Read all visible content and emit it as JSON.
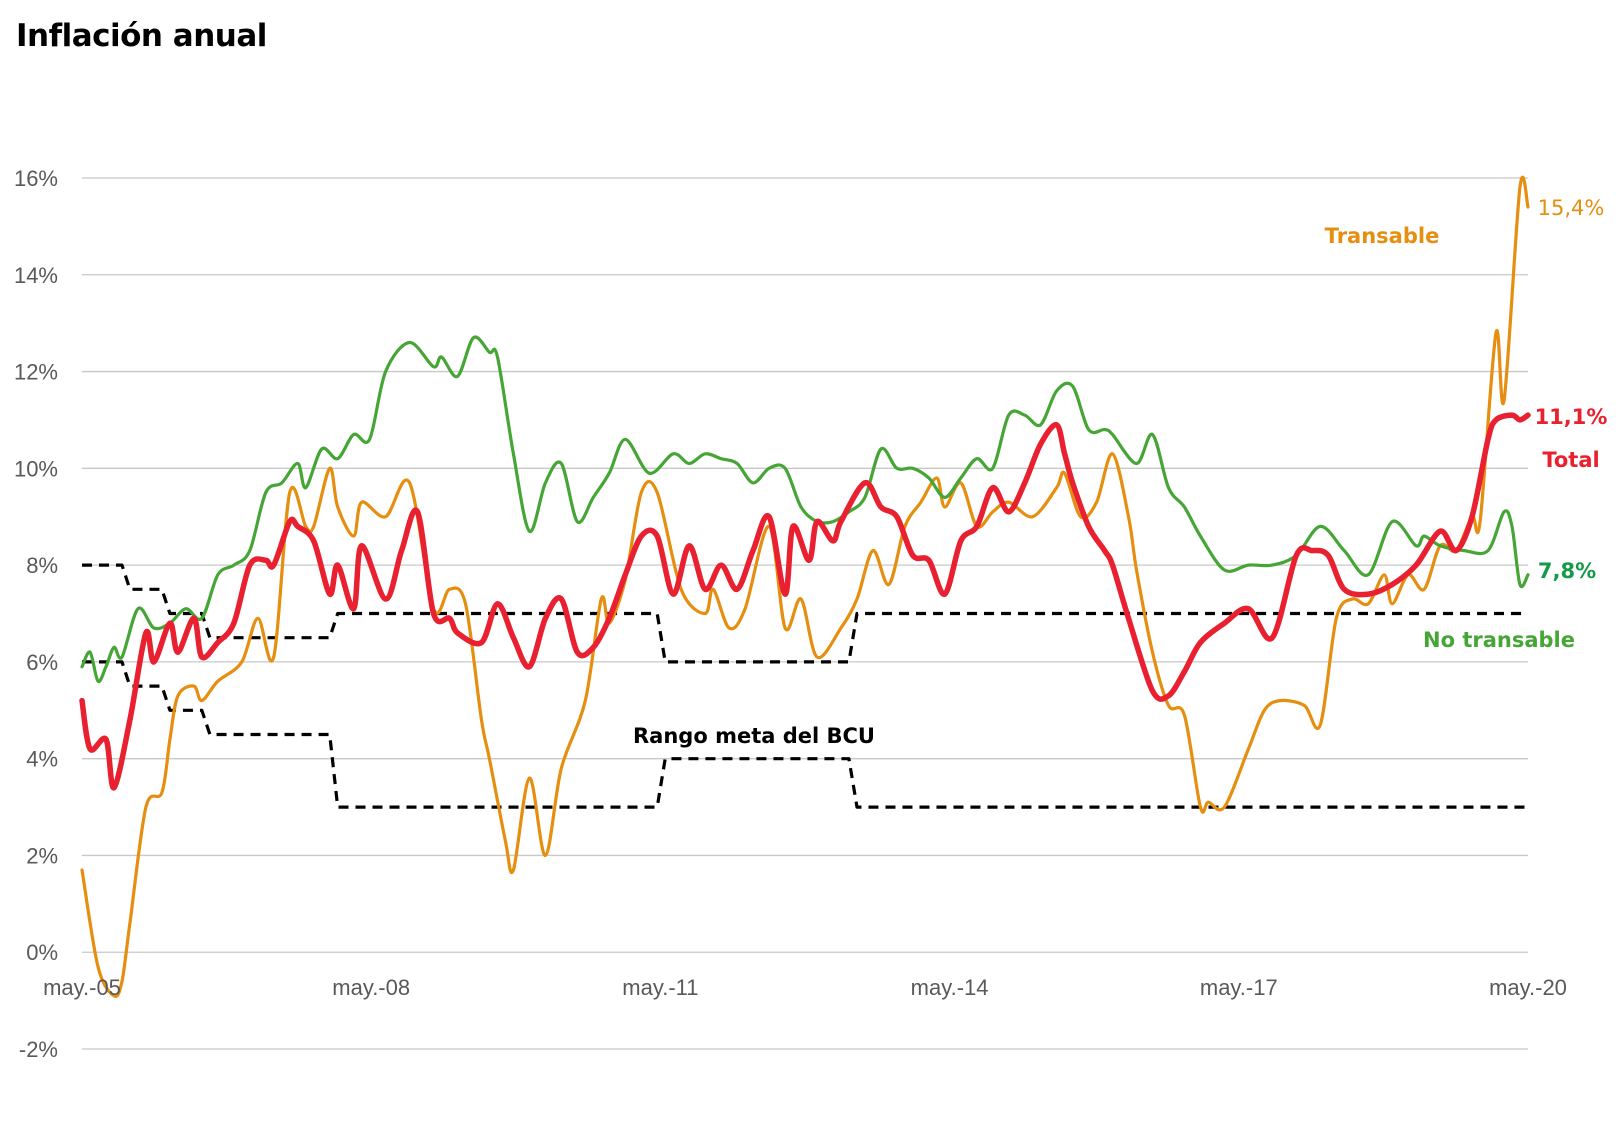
{
  "title": "Inflación anual",
  "chart_data": {
    "type": "line",
    "title": "Inflación anual",
    "xlabel": "",
    "ylabel": "",
    "x_tick_labels": [
      "may.-05",
      "may.-08",
      "may.-11",
      "may.-14",
      "may.-17",
      "may.-20"
    ],
    "y_tick_labels": [
      "-2%",
      "0%",
      "2%",
      "4%",
      "6%",
      "8%",
      "10%",
      "12%",
      "14%",
      "16%"
    ],
    "ylim": [
      -2,
      16
    ],
    "xlim": [
      2005.333,
      2020.417
    ],
    "grid": "horizontal",
    "colors": {
      "Total": "#e8202f",
      "Transable": "#e58e0f",
      "No transable": "#45a535",
      "band": "#000000",
      "green_label": "#159a4a"
    },
    "series": [
      {
        "name": "Transable",
        "x": [
          2005.333,
          2005.5,
          2005.667,
          2005.75,
          2005.833,
          2006.0,
          2006.167,
          2006.25,
          2006.333,
          2006.5,
          2006.583,
          2006.75,
          2007.0,
          2007.167,
          2007.333,
          2007.5,
          2007.667,
          2007.75,
          2007.917,
          2008.0,
          2008.167,
          2008.25,
          2008.5,
          2008.75,
          2009.0,
          2009.167,
          2009.333,
          2009.5,
          2009.583,
          2009.75,
          2009.833,
          2010.0,
          2010.167,
          2010.333,
          2010.583,
          2010.75,
          2010.833,
          2011.0,
          2011.167,
          2011.333,
          2011.583,
          2011.833,
          2011.917,
          2012.083,
          2012.25,
          2012.5,
          2012.667,
          2012.833,
          2013.0,
          2013.25,
          2013.417,
          2013.583,
          2013.75,
          2013.917,
          2014.083,
          2014.25,
          2014.333,
          2014.5,
          2014.667,
          2014.833,
          2015.0,
          2015.25,
          2015.5,
          2015.583,
          2015.75,
          2015.917,
          2016.083,
          2016.25,
          2016.333,
          2016.5,
          2016.667,
          2016.833,
          2017.0,
          2017.083,
          2017.25,
          2017.5,
          2017.667,
          2017.833,
          2018.083,
          2018.25,
          2018.417,
          2018.583,
          2018.75,
          2018.917,
          2019.0,
          2019.167,
          2019.333,
          2019.5,
          2019.667,
          2019.833,
          2019.917,
          2020.083,
          2020.167,
          2020.333,
          2020.417
        ],
        "values": [
          1.7,
          -0.3,
          -0.9,
          -0.6,
          0.6,
          3.0,
          3.3,
          4.4,
          5.3,
          5.5,
          5.2,
          5.6,
          6.0,
          6.9,
          6.1,
          9.5,
          8.8,
          8.8,
          10.0,
          9.2,
          8.6,
          9.3,
          9.0,
          9.7,
          7.1,
          7.5,
          7.2,
          4.8,
          4.0,
          2.3,
          1.7,
          3.6,
          2.0,
          3.8,
          5.2,
          7.3,
          6.8,
          7.7,
          9.5,
          9.5,
          7.5,
          7.0,
          7.5,
          6.7,
          7.1,
          8.8,
          6.7,
          7.3,
          6.1,
          6.7,
          7.3,
          8.3,
          7.6,
          8.8,
          9.3,
          9.8,
          9.2,
          9.7,
          8.8,
          9.1,
          9.3,
          9.0,
          9.6,
          9.9,
          9.0,
          9.3,
          10.3,
          9.0,
          7.9,
          6.2,
          5.1,
          4.9,
          3.0,
          3.1,
          3.0,
          4.2,
          5.0,
          5.2,
          5.1,
          4.7,
          6.9,
          7.3,
          7.2,
          7.8,
          7.2,
          7.8,
          7.5,
          8.4,
          8.3,
          9.0,
          8.9,
          12.8,
          11.4,
          15.8,
          15.4
        ]
      },
      {
        "name": "No transable",
        "x": [
          2005.333,
          2005.417,
          2005.5,
          2005.583,
          2005.667,
          2005.75,
          2005.917,
          2006.083,
          2006.25,
          2006.417,
          2006.583,
          2006.75,
          2006.917,
          2007.083,
          2007.25,
          2007.417,
          2007.583,
          2007.667,
          2007.833,
          2008.0,
          2008.167,
          2008.333,
          2008.5,
          2008.75,
          2009.0,
          2009.083,
          2009.25,
          2009.417,
          2009.583,
          2009.667,
          2009.833,
          2010.0,
          2010.167,
          2010.333,
          2010.5,
          2010.667,
          2010.833,
          2011.0,
          2011.25,
          2011.5,
          2011.667,
          2011.833,
          2012.0,
          2012.167,
          2012.333,
          2012.5,
          2012.667,
          2012.833,
          2013.0,
          2013.167,
          2013.333,
          2013.5,
          2013.667,
          2013.833,
          2014.0,
          2014.167,
          2014.333,
          2014.5,
          2014.667,
          2014.833,
          2015.0,
          2015.167,
          2015.333,
          2015.5,
          2015.667,
          2015.833,
          2016.0,
          2016.083,
          2016.333,
          2016.5,
          2016.667,
          2016.833,
          2017.0,
          2017.25,
          2017.5,
          2017.75,
          2018.0,
          2018.25,
          2018.5,
          2018.75,
          2019.0,
          2019.25,
          2019.333,
          2019.5,
          2019.75,
          2020.0,
          2020.167,
          2020.25,
          2020.333,
          2020.417
        ],
        "values": [
          5.9,
          6.2,
          5.6,
          5.9,
          6.3,
          6.1,
          7.1,
          6.7,
          6.8,
          7.1,
          6.9,
          7.8,
          8.0,
          8.3,
          9.5,
          9.7,
          10.1,
          9.6,
          10.4,
          10.2,
          10.7,
          10.6,
          12.0,
          12.6,
          12.1,
          12.3,
          11.9,
          12.7,
          12.4,
          12.3,
          10.3,
          8.7,
          9.7,
          10.1,
          8.9,
          9.4,
          9.9,
          10.6,
          9.9,
          10.3,
          10.1,
          10.3,
          10.2,
          10.1,
          9.7,
          10.0,
          10.0,
          9.2,
          8.9,
          8.9,
          9.1,
          9.4,
          10.4,
          10.0,
          10.0,
          9.8,
          9.4,
          9.8,
          10.2,
          10.0,
          11.1,
          11.1,
          10.9,
          11.6,
          11.7,
          10.8,
          10.8,
          10.7,
          10.1,
          10.7,
          9.6,
          9.2,
          8.6,
          7.9,
          8.0,
          8.0,
          8.2,
          8.8,
          8.3,
          7.8,
          8.9,
          8.4,
          8.6,
          8.4,
          8.3,
          8.3,
          9.1,
          8.8,
          7.6,
          7.8
        ]
      },
      {
        "name": "Total",
        "x": [
          2005.333,
          2005.417,
          2005.583,
          2005.667,
          2005.833,
          2006.0,
          2006.083,
          2006.25,
          2006.333,
          2006.5,
          2006.583,
          2006.75,
          2006.917,
          2007.083,
          2007.25,
          2007.333,
          2007.5,
          2007.583,
          2007.75,
          2007.917,
          2008.0,
          2008.167,
          2008.25,
          2008.5,
          2008.667,
          2008.833,
          2009.0,
          2009.167,
          2009.25,
          2009.5,
          2009.667,
          2009.833,
          2010.0,
          2010.167,
          2010.333,
          2010.5,
          2010.667,
          2010.833,
          2011.0,
          2011.167,
          2011.333,
          2011.5,
          2011.667,
          2011.833,
          2012.0,
          2012.167,
          2012.333,
          2012.5,
          2012.667,
          2012.75,
          2012.917,
          2013.0,
          2013.167,
          2013.25,
          2013.5,
          2013.667,
          2013.833,
          2014.0,
          2014.167,
          2014.333,
          2014.5,
          2014.667,
          2014.833,
          2015.0,
          2015.167,
          2015.333,
          2015.5,
          2015.583,
          2015.667,
          2015.833,
          2016.0,
          2016.083,
          2016.25,
          2016.5,
          2016.667,
          2016.833,
          2017.0,
          2017.25,
          2017.5,
          2017.75,
          2018.0,
          2018.167,
          2018.333,
          2018.5,
          2018.75,
          2019.0,
          2019.25,
          2019.5,
          2019.667,
          2019.833,
          2020.0,
          2020.083,
          2020.25,
          2020.333,
          2020.417
        ],
        "values": [
          5.2,
          4.2,
          4.4,
          3.4,
          4.8,
          6.6,
          6.0,
          6.8,
          6.2,
          6.9,
          6.1,
          6.4,
          6.8,
          8.0,
          8.1,
          8.0,
          8.9,
          8.8,
          8.5,
          7.4,
          8.0,
          7.1,
          8.4,
          7.3,
          8.3,
          9.1,
          7.0,
          6.9,
          6.6,
          6.4,
          7.2,
          6.5,
          5.9,
          6.9,
          7.3,
          6.2,
          6.3,
          6.9,
          7.8,
          8.6,
          8.6,
          7.4,
          8.4,
          7.5,
          8.0,
          7.5,
          8.3,
          9.0,
          7.4,
          8.8,
          8.1,
          8.9,
          8.5,
          8.9,
          9.7,
          9.2,
          9.0,
          8.2,
          8.1,
          7.4,
          8.5,
          8.8,
          9.6,
          9.1,
          9.7,
          10.5,
          10.9,
          10.3,
          9.7,
          8.8,
          8.3,
          8.0,
          6.9,
          5.4,
          5.3,
          5.8,
          6.4,
          6.8,
          7.1,
          6.5,
          8.2,
          8.3,
          8.2,
          7.5,
          7.4,
          7.6,
          8.0,
          8.7,
          8.3,
          9.0,
          10.6,
          11.0,
          11.1,
          11.0,
          11.1
        ]
      },
      {
        "name": "Rango meta del BCU (techo)",
        "x": [
          2005.333,
          2005.75,
          2005.833,
          2006.167,
          2006.25,
          2006.583,
          2006.667,
          2007.917,
          2008.0,
          2011.333,
          2011.417,
          2013.333,
          2013.417,
          2020.417
        ],
        "values": [
          8,
          8,
          7.5,
          7.5,
          7,
          7,
          6.5,
          6.5,
          7,
          7,
          6,
          6,
          7,
          7
        ]
      },
      {
        "name": "Rango meta del BCU (piso)",
        "x": [
          2005.333,
          2005.75,
          2005.833,
          2006.167,
          2006.25,
          2006.583,
          2006.667,
          2007.917,
          2008.0,
          2011.333,
          2011.417,
          2013.333,
          2013.417,
          2020.417
        ],
        "values": [
          6,
          6,
          5.5,
          5.5,
          5,
          5,
          4.5,
          4.5,
          3,
          3,
          4,
          4,
          3,
          3
        ]
      }
    ],
    "annotations": {
      "transable_label": "Transable",
      "transable_value": "15,4%",
      "total_value": "11,1%",
      "total_label": "Total",
      "no_transable_value": "7,8%",
      "no_transable_label": "No transable",
      "band_label": "Rango meta del BCU"
    }
  }
}
